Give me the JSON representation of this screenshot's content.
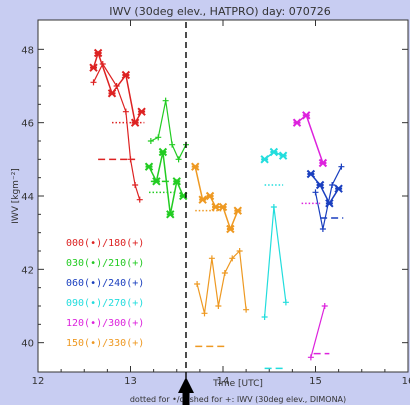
{
  "chart_data": {
    "type": "line",
    "title": "IWV (30deg elev., HATPRO) day: 070726",
    "xlabel": "Time [UTC]",
    "ylabel": "IWV [kgm⁻²]",
    "footer": "dotted for •/dashed for +: IWV (30deg elev., DIMONA)",
    "xlim": [
      12,
      16
    ],
    "ylim": [
      39.2,
      48.8
    ],
    "xticks": [
      "12",
      "13",
      "14",
      "15",
      "16"
    ],
    "yticks": [
      "40",
      "42",
      "44",
      "46",
      "48"
    ],
    "marker_line_x": 13.6,
    "legend_placement": "left",
    "series": [
      {
        "name": "000(•)/180(+)",
        "color": "#dd2222",
        "bullet": [
          [
            12.6,
            47.5
          ],
          [
            12.65,
            47.9
          ],
          [
            12.8,
            46.8
          ],
          [
            12.95,
            47.3
          ],
          [
            13.05,
            46.0
          ],
          [
            13.12,
            46.3
          ]
        ],
        "plus": [
          [
            12.6,
            47.1
          ],
          [
            12.7,
            47.6
          ],
          [
            12.85,
            47.0
          ],
          [
            12.95,
            46.3
          ],
          [
            13.0,
            45.0
          ],
          [
            13.05,
            44.3
          ],
          [
            13.1,
            43.9
          ]
        ],
        "dotted": [
          [
            12.8,
            46.0
          ],
          [
            13.15,
            46.0
          ]
        ],
        "dashed": [
          [
            12.65,
            45.0
          ],
          [
            13.05,
            45.0
          ]
        ]
      },
      {
        "name": "030(•)/210(+)",
        "color": "#22cc22",
        "bullet": [
          [
            13.2,
            44.8
          ],
          [
            13.28,
            44.4
          ],
          [
            13.35,
            45.2
          ],
          [
            13.43,
            43.5
          ],
          [
            13.5,
            44.4
          ],
          [
            13.57,
            44.0
          ]
        ],
        "plus": [
          [
            13.22,
            45.5
          ],
          [
            13.3,
            45.6
          ],
          [
            13.38,
            46.6
          ],
          [
            13.45,
            45.4
          ],
          [
            13.52,
            45.0
          ],
          [
            13.6,
            45.4
          ]
        ],
        "dotted": [
          [
            13.2,
            44.1
          ],
          [
            13.5,
            44.1
          ]
        ],
        "dashed": [
          [
            13.22,
            44.4
          ],
          [
            13.45,
            44.4
          ]
        ]
      },
      {
        "name": "060(•)/240(+)",
        "color": "#1a3fbf",
        "bullet": [
          [
            14.95,
            44.6
          ],
          [
            15.05,
            44.3
          ],
          [
            15.15,
            43.8
          ],
          [
            15.25,
            44.2
          ]
        ],
        "plus": [
          [
            15.0,
            44.1
          ],
          [
            15.08,
            43.1
          ],
          [
            15.18,
            44.3
          ],
          [
            15.28,
            44.8
          ]
        ],
        "dotted": [],
        "dashed": [
          [
            15.05,
            43.4
          ],
          [
            15.3,
            43.4
          ]
        ]
      },
      {
        "name": "090(•)/270(+)",
        "color": "#22dddd",
        "bullet": [
          [
            14.45,
            45.0
          ],
          [
            14.55,
            45.2
          ],
          [
            14.65,
            45.1
          ]
        ],
        "plus": [
          [
            14.45,
            40.7
          ],
          [
            14.55,
            43.7
          ],
          [
            14.68,
            41.1
          ]
        ],
        "dotted": [
          [
            14.45,
            44.3
          ],
          [
            14.65,
            44.3
          ]
        ],
        "dashed": [
          [
            14.45,
            39.3
          ],
          [
            14.65,
            39.3
          ]
        ]
      },
      {
        "name": "120(•)/300(+)",
        "color": "#dd22dd",
        "bullet": [
          [
            14.8,
            46.0
          ],
          [
            14.9,
            46.2
          ],
          [
            15.08,
            44.9
          ]
        ],
        "plus": [
          [
            14.95,
            39.6
          ],
          [
            15.1,
            41.0
          ]
        ],
        "dotted": [
          [
            14.85,
            43.8
          ],
          [
            15.05,
            43.8
          ]
        ],
        "dashed": [
          [
            14.98,
            39.7
          ],
          [
            15.15,
            39.7
          ]
        ]
      },
      {
        "name": "150(•)/330(+)",
        "color": "#ee9922",
        "bullet": [
          [
            13.7,
            44.8
          ],
          [
            13.78,
            43.9
          ],
          [
            13.86,
            44.0
          ],
          [
            13.92,
            43.7
          ],
          [
            14.0,
            43.7
          ],
          [
            14.08,
            43.1
          ],
          [
            14.16,
            43.6
          ]
        ],
        "plus": [
          [
            13.72,
            41.6
          ],
          [
            13.8,
            40.8
          ],
          [
            13.88,
            42.3
          ],
          [
            13.95,
            41.0
          ],
          [
            14.02,
            41.9
          ],
          [
            14.1,
            42.3
          ],
          [
            14.18,
            42.5
          ],
          [
            14.25,
            40.9
          ]
        ],
        "dotted": [
          [
            13.7,
            43.6
          ],
          [
            14.0,
            43.6
          ]
        ],
        "dashed": [
          [
            13.7,
            39.9
          ],
          [
            14.05,
            39.9
          ]
        ]
      }
    ]
  }
}
